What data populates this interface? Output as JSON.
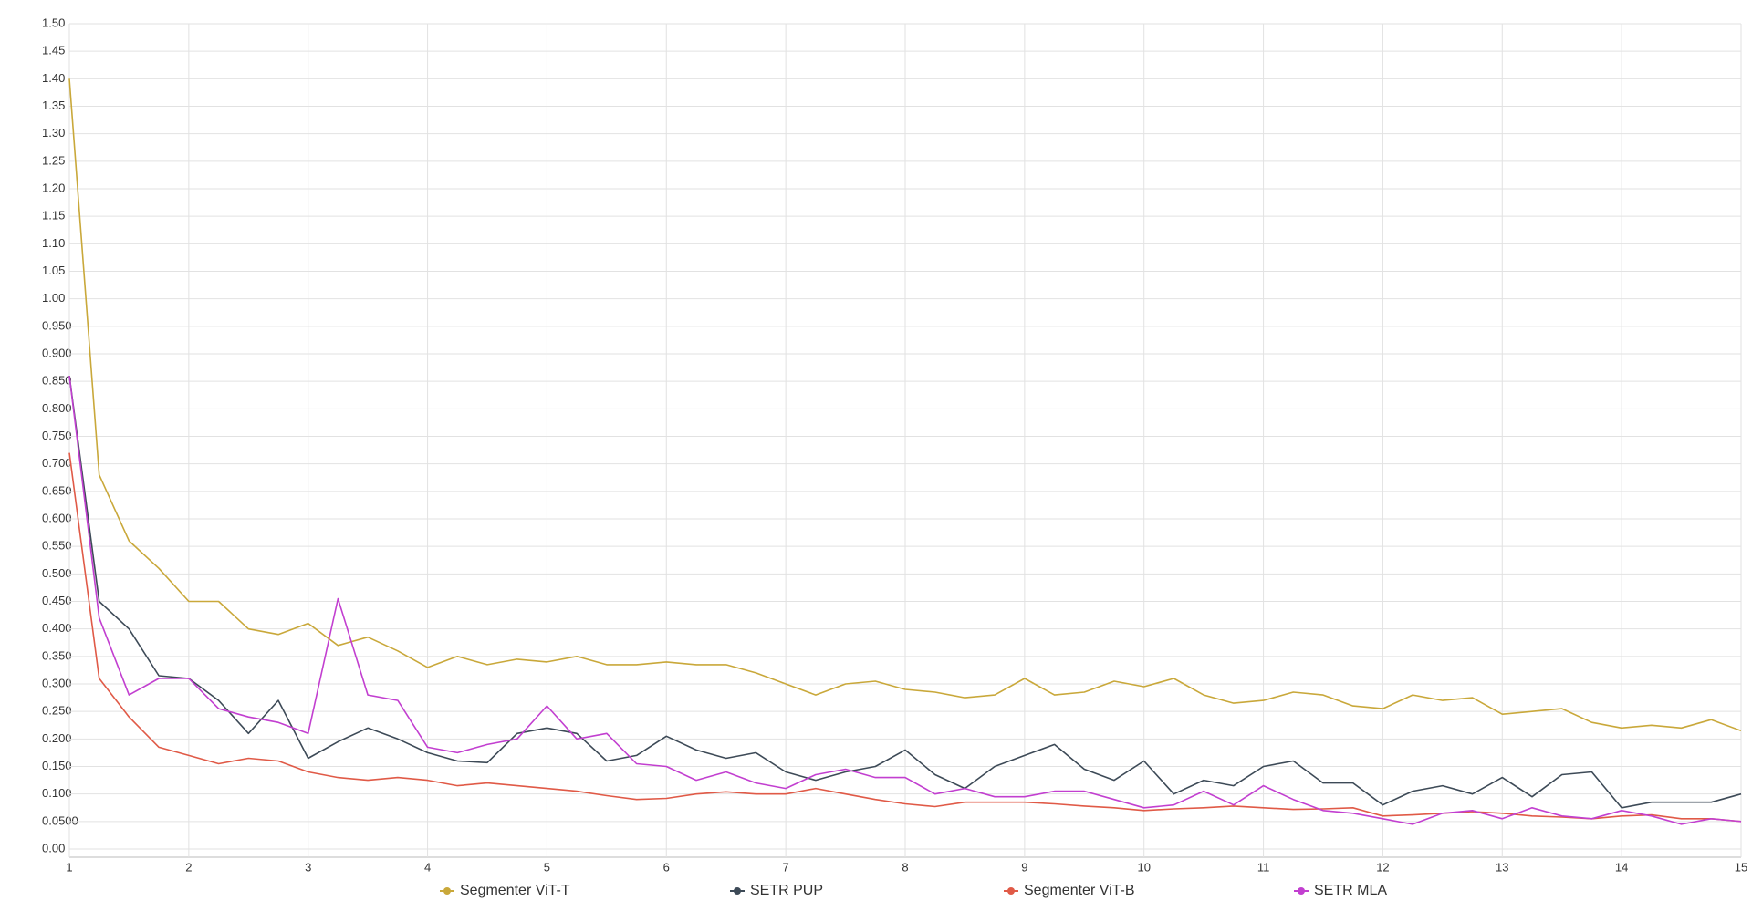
{
  "chart_data": {
    "type": "line",
    "x": [
      1,
      1.25,
      1.5,
      1.75,
      2,
      2.25,
      2.5,
      2.75,
      3,
      3.25,
      3.5,
      3.75,
      4,
      4.25,
      4.5,
      4.75,
      5,
      5.25,
      5.5,
      5.75,
      6,
      6.25,
      6.5,
      6.75,
      7,
      7.25,
      7.5,
      7.75,
      8,
      8.25,
      8.5,
      8.75,
      9,
      9.25,
      9.5,
      9.75,
      10,
      10.25,
      10.5,
      10.75,
      11,
      11.25,
      11.5,
      11.75,
      12,
      12.25,
      12.5,
      12.75,
      13,
      13.25,
      13.5,
      13.75,
      14,
      14.25,
      14.5,
      14.75,
      15
    ],
    "series": [
      {
        "name": "Segmenter ViT-T",
        "color": "#c9a83a",
        "values": [
          1.4,
          0.68,
          0.56,
          0.51,
          0.45,
          0.45,
          0.4,
          0.39,
          0.41,
          0.37,
          0.385,
          0.36,
          0.33,
          0.35,
          0.335,
          0.345,
          0.34,
          0.35,
          0.335,
          0.335,
          0.34,
          0.335,
          0.335,
          0.32,
          0.3,
          0.28,
          0.3,
          0.305,
          0.29,
          0.285,
          0.275,
          0.28,
          0.31,
          0.28,
          0.285,
          0.305,
          0.295,
          0.31,
          0.28,
          0.265,
          0.27,
          0.285,
          0.28,
          0.26,
          0.255,
          0.28,
          0.27,
          0.275,
          0.245,
          0.25,
          0.255,
          0.23,
          0.22,
          0.225,
          0.22,
          0.235,
          0.215
        ]
      },
      {
        "name": "SETR PUP",
        "color": "#3d4a57",
        "values": [
          0.86,
          0.45,
          0.4,
          0.315,
          0.31,
          0.27,
          0.21,
          0.27,
          0.165,
          0.195,
          0.22,
          0.2,
          0.175,
          0.16,
          0.157,
          0.21,
          0.22,
          0.21,
          0.16,
          0.17,
          0.205,
          0.18,
          0.165,
          0.175,
          0.14,
          0.125,
          0.14,
          0.15,
          0.18,
          0.135,
          0.11,
          0.15,
          0.17,
          0.19,
          0.145,
          0.125,
          0.16,
          0.1,
          0.125,
          0.115,
          0.15,
          0.16,
          0.12,
          0.12,
          0.08,
          0.105,
          0.115,
          0.1,
          0.13,
          0.095,
          0.135,
          0.14,
          0.075,
          0.085,
          0.085,
          0.085,
          0.1
        ]
      },
      {
        "name": "Segmenter ViT-B",
        "color": "#e05a47",
        "values": [
          0.72,
          0.31,
          0.24,
          0.185,
          0.17,
          0.155,
          0.165,
          0.16,
          0.14,
          0.13,
          0.125,
          0.13,
          0.125,
          0.115,
          0.12,
          0.115,
          0.11,
          0.105,
          0.097,
          0.09,
          0.092,
          0.1,
          0.104,
          0.1,
          0.1,
          0.11,
          0.1,
          0.09,
          0.082,
          0.077,
          0.085,
          0.085,
          0.085,
          0.082,
          0.078,
          0.075,
          0.07,
          0.073,
          0.075,
          0.078,
          0.075,
          0.072,
          0.073,
          0.075,
          0.06,
          0.062,
          0.065,
          0.068,
          0.065,
          0.06,
          0.058,
          0.055,
          0.06,
          0.062,
          0.055,
          0.055,
          0.05
        ]
      },
      {
        "name": "SETR MLA",
        "color": "#c23fd0",
        "values": [
          0.86,
          0.42,
          0.28,
          0.31,
          0.31,
          0.255,
          0.24,
          0.23,
          0.21,
          0.455,
          0.28,
          0.27,
          0.185,
          0.175,
          0.19,
          0.2,
          0.26,
          0.2,
          0.21,
          0.155,
          0.15,
          0.125,
          0.14,
          0.12,
          0.11,
          0.135,
          0.145,
          0.13,
          0.13,
          0.1,
          0.11,
          0.095,
          0.095,
          0.105,
          0.105,
          0.09,
          0.075,
          0.08,
          0.105,
          0.08,
          0.115,
          0.09,
          0.07,
          0.065,
          0.055,
          0.045,
          0.065,
          0.07,
          0.055,
          0.075,
          0.06,
          0.055,
          0.07,
          0.06,
          0.045,
          0.055,
          0.05
        ]
      }
    ],
    "xlim": [
      1,
      15
    ],
    "xticks": [
      1,
      2,
      3,
      4,
      5,
      6,
      7,
      8,
      9,
      10,
      11,
      12,
      13,
      14,
      15
    ],
    "ylim": [
      0,
      1.5
    ],
    "yticks": [
      {
        "value": 0,
        "label": "0.00"
      },
      {
        "value": 0.05,
        "label": "0.0500"
      },
      {
        "value": 0.1,
        "label": "0.100"
      },
      {
        "value": 0.15,
        "label": "0.150"
      },
      {
        "value": 0.2,
        "label": "0.200"
      },
      {
        "value": 0.25,
        "label": "0.250"
      },
      {
        "value": 0.3,
        "label": "0.300"
      },
      {
        "value": 0.35,
        "label": "0.350"
      },
      {
        "value": 0.4,
        "label": "0.400"
      },
      {
        "value": 0.45,
        "label": "0.450"
      },
      {
        "value": 0.5,
        "label": "0.500"
      },
      {
        "value": 0.55,
        "label": "0.550"
      },
      {
        "value": 0.6,
        "label": "0.600"
      },
      {
        "value": 0.65,
        "label": "0.650"
      },
      {
        "value": 0.7,
        "label": "0.700"
      },
      {
        "value": 0.75,
        "label": "0.750"
      },
      {
        "value": 0.8,
        "label": "0.800"
      },
      {
        "value": 0.85,
        "label": "0.850"
      },
      {
        "value": 0.9,
        "label": "0.900"
      },
      {
        "value": 0.95,
        "label": "0.950"
      },
      {
        "value": 1,
        "label": "1.00"
      },
      {
        "value": 1.05,
        "label": "1.05"
      },
      {
        "value": 1.1,
        "label": "1.10"
      },
      {
        "value": 1.15,
        "label": "1.15"
      },
      {
        "value": 1.2,
        "label": "1.20"
      },
      {
        "value": 1.25,
        "label": "1.25"
      },
      {
        "value": 1.3,
        "label": "1.30"
      },
      {
        "value": 1.35,
        "label": "1.35"
      },
      {
        "value": 1.4,
        "label": "1.40"
      },
      {
        "value": 1.45,
        "label": "1.45"
      },
      {
        "value": 1.5,
        "label": "1.50"
      }
    ],
    "grid": true,
    "legend": "bottom"
  }
}
